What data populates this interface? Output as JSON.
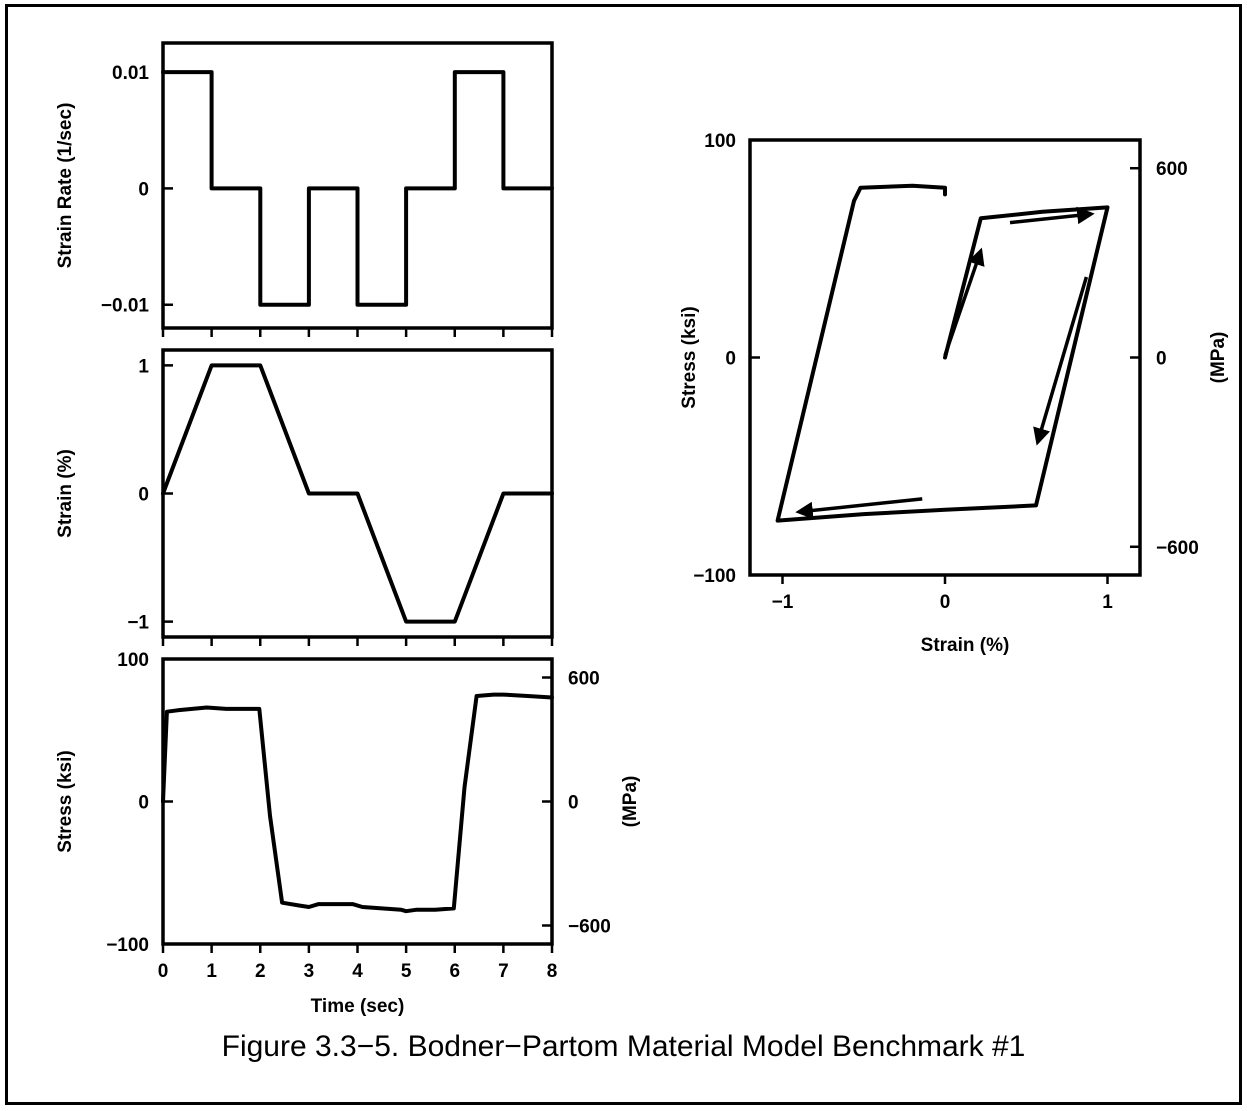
{
  "caption": "Figure 3.3−5. Bodner−Partom Material Model Benchmark #1",
  "colors": {
    "ink": "#000000",
    "background": "#ffffff"
  },
  "chart_data": [
    {
      "id": "strain-rate",
      "type": "line",
      "title": "",
      "xlabel": "",
      "ylabel": "Strain Rate (1/sec)",
      "xlim": [
        0,
        8
      ],
      "ylim": [
        -0.012,
        0.0125
      ],
      "yticks": [
        {
          "v": 0.01,
          "label": "0.01"
        },
        {
          "v": 0,
          "label": "0"
        },
        {
          "v": -0.01,
          "label": "−0.01"
        }
      ],
      "xticks": [
        0,
        1,
        2,
        3,
        4,
        5,
        6,
        7,
        8
      ],
      "show_xtick_labels": false,
      "grid": false,
      "x": [
        0,
        1,
        1,
        2,
        2,
        3,
        3,
        4,
        4,
        5,
        5,
        6,
        6,
        7,
        7,
        8
      ],
      "y": [
        0.01,
        0.01,
        0,
        0,
        -0.01,
        -0.01,
        0,
        0,
        -0.01,
        -0.01,
        0,
        0,
        0.01,
        0.01,
        0,
        0
      ]
    },
    {
      "id": "strain",
      "type": "line",
      "title": "",
      "xlabel": "",
      "ylabel": "Strain (%)",
      "xlim": [
        0,
        8
      ],
      "ylim": [
        -1.12,
        1.12
      ],
      "yticks": [
        {
          "v": 1,
          "label": "1"
        },
        {
          "v": 0,
          "label": "0"
        },
        {
          "v": -1,
          "label": "−1"
        }
      ],
      "xticks": [
        0,
        1,
        2,
        3,
        4,
        5,
        6,
        7,
        8
      ],
      "show_xtick_labels": false,
      "grid": false,
      "x": [
        0,
        1,
        2,
        3,
        4,
        5,
        6,
        7,
        8
      ],
      "y": [
        0,
        1,
        1,
        0,
        0,
        -1,
        -1,
        0,
        0
      ]
    },
    {
      "id": "stress-time",
      "type": "line",
      "title": "",
      "xlabel": "Time (sec)",
      "ylabel": "Stress (ksi)",
      "y2label": "(MPa)",
      "xlim": [
        0,
        8
      ],
      "ylim": [
        -100,
        100
      ],
      "yticks": [
        {
          "v": 100,
          "label": "100"
        },
        {
          "v": 0,
          "label": "0"
        },
        {
          "v": -100,
          "label": "−100"
        }
      ],
      "y2ticks": [
        {
          "v": 87.02,
          "label": "600"
        },
        {
          "v": 0,
          "label": "0"
        },
        {
          "v": -87.02,
          "label": "−600"
        }
      ],
      "xticks": [
        0,
        1,
        2,
        3,
        4,
        5,
        6,
        7,
        8
      ],
      "show_xtick_labels": true,
      "grid": false,
      "x": [
        0,
        0.08,
        0.3,
        0.6,
        0.9,
        1.3,
        1.7,
        1.98,
        2.2,
        2.45,
        2.8,
        3.0,
        3.2,
        3.6,
        3.9,
        4.1,
        4.5,
        4.9,
        5.0,
        5.2,
        5.6,
        5.98,
        6.2,
        6.45,
        6.8,
        7.0,
        7.5,
        8.0
      ],
      "y": [
        0,
        63,
        64,
        65,
        66,
        65,
        65,
        65,
        -10,
        -71,
        -73,
        -74,
        -72,
        -72,
        -72,
        -74,
        -75,
        -76,
        -77,
        -76,
        -76,
        -75,
        10,
        74,
        75,
        75,
        74,
        73
      ]
    },
    {
      "id": "hysteresis",
      "type": "line",
      "title": "",
      "xlabel": "Strain (%)",
      "ylabel": "Stress (ksi)",
      "y2label": "(MPa)",
      "xlim": [
        -1.2,
        1.2
      ],
      "ylim": [
        -100,
        100
      ],
      "xticks": [
        {
          "v": -1,
          "label": "−1"
        },
        {
          "v": 0,
          "label": "0"
        },
        {
          "v": 1,
          "label": "1"
        }
      ],
      "yticks": [
        {
          "v": 100,
          "label": "100"
        },
        {
          "v": 0,
          "label": "0"
        },
        {
          "v": -100,
          "label": "−100"
        }
      ],
      "y2ticks": [
        {
          "v": 87.02,
          "label": "600"
        },
        {
          "v": 0,
          "label": "0"
        },
        {
          "v": -87.02,
          "label": "−600"
        }
      ],
      "grid": false,
      "x": [
        0,
        0.22,
        0.6,
        1.0,
        0.56,
        0.0,
        -0.5,
        -1.03,
        -0.56,
        -0.52,
        -0.2,
        0.0,
        0.0
      ],
      "y": [
        0,
        64,
        67,
        69,
        -68,
        -70,
        -72,
        -75,
        72,
        78,
        79,
        78,
        75
      ],
      "arrows": [
        {
          "from": [
            0.0,
            1
          ],
          "to": [
            0.22,
            49
          ]
        },
        {
          "from": [
            0.4,
            62
          ],
          "to": [
            0.9,
            66
          ]
        },
        {
          "from": [
            0.87,
            37
          ],
          "to": [
            0.57,
            -39
          ]
        },
        {
          "from": [
            -0.14,
            -65
          ],
          "to": [
            -0.9,
            -71
          ]
        }
      ]
    }
  ]
}
